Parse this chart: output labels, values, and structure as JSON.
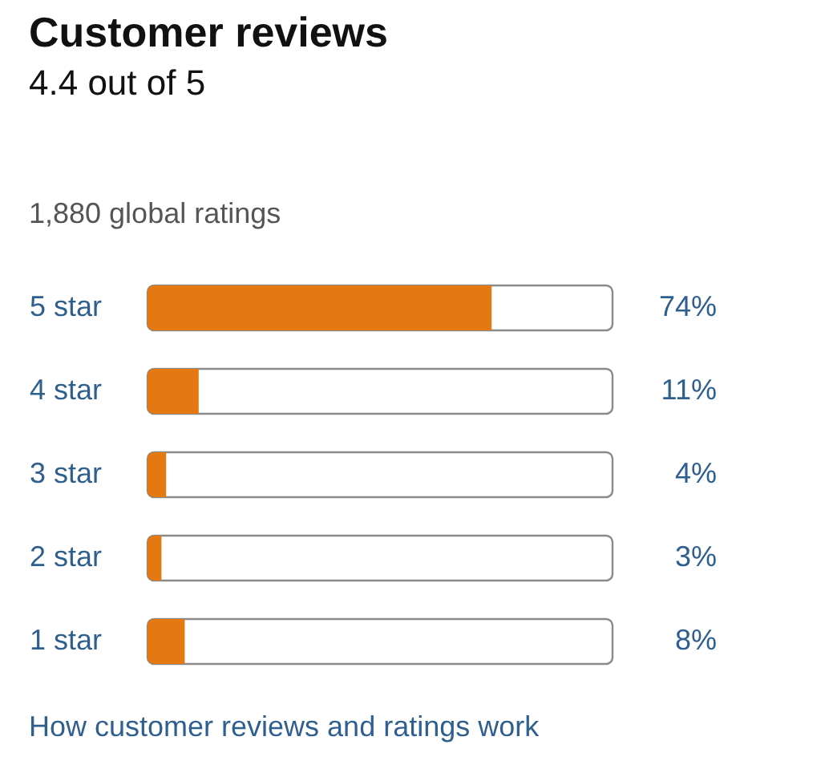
{
  "chart_data": {
    "type": "bar",
    "orientation": "horizontal",
    "title": "Customer reviews",
    "subtitle": "4.4 out of 5",
    "annotations": [
      "1,880 global ratings",
      "How customer reviews and ratings work"
    ],
    "categories": [
      "5 star",
      "4 star",
      "3 star",
      "2 star",
      "1 star"
    ],
    "values": [
      74,
      11,
      4,
      3,
      8
    ],
    "value_labels": [
      "74%",
      "11%",
      "4%",
      "3%",
      "8%"
    ],
    "color": "#e47911",
    "xlim": [
      0,
      100
    ]
  }
}
